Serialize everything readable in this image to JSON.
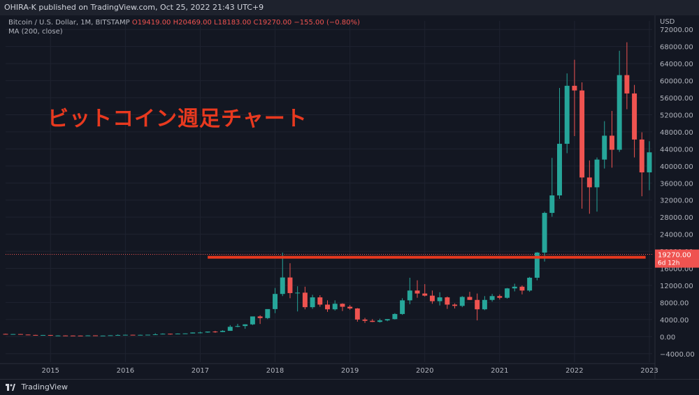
{
  "header": {
    "published": "OHIRA-K published on TradingView.com, Oct 25, 2022 21:43 UTC+9"
  },
  "legend": {
    "symbol": "Bitcoin / U.S. Dollar, 1M, BITSTAMP",
    "open": "O19419.00",
    "high": "H20469.00",
    "low": "L18183.00",
    "close": "C19270.00",
    "change": "−155.00 (−0.80%)",
    "ma": "MA (200, close)"
  },
  "annotation": {
    "title": "ビットコイン週足チャート"
  },
  "price_tag": {
    "price": "19270.00",
    "countdown": "6d 12h"
  },
  "footer": {
    "brand": "TradingView"
  },
  "colors": {
    "up": "#26a69a",
    "down": "#ef5350",
    "support": "#e8391f",
    "bg": "#131722"
  },
  "chart_data": {
    "type": "candlestick",
    "currency": "USD",
    "ylim": [
      -6000,
      74000
    ],
    "yticks": [
      72000,
      68000,
      64000,
      60000,
      56000,
      52000,
      48000,
      44000,
      40000,
      36000,
      32000,
      28000,
      24000,
      20000,
      16000,
      12000,
      8000,
      4000,
      0,
      -4000
    ],
    "ytick_labels": [
      "72000.00",
      "68000.00",
      "64000.00",
      "60000.00",
      "56000.00",
      "52000.00",
      "48000.00",
      "44000.00",
      "40000.00",
      "36000.00",
      "32000.00",
      "28000.00",
      "24000.00",
      "20000.00",
      "16000.00",
      "12000.00",
      "8000.00",
      "4000.00",
      "0.00",
      "−4000.00"
    ],
    "xlim": [
      2014.4,
      2023.0
    ],
    "xticks": [
      2015,
      2016,
      2017,
      2018,
      2019,
      2020,
      2021,
      2022,
      2023
    ],
    "xtick_labels": [
      "2015",
      "2016",
      "2017",
      "2018",
      "2019",
      "2020",
      "2021",
      "2022",
      "2023"
    ],
    "current_price": 19270,
    "support_level": {
      "price": 18600,
      "x_start": 2017.1,
      "x_end": 2022.95
    },
    "candles": [
      {
        "t": 2014.4,
        "o": 630,
        "h": 680,
        "l": 560,
        "c": 580
      },
      {
        "t": 2014.5,
        "o": 580,
        "h": 620,
        "l": 540,
        "c": 600
      },
      {
        "t": 2014.6,
        "o": 600,
        "h": 610,
        "l": 460,
        "c": 480
      },
      {
        "t": 2014.7,
        "o": 480,
        "h": 500,
        "l": 380,
        "c": 390
      },
      {
        "t": 2014.8,
        "o": 390,
        "h": 420,
        "l": 330,
        "c": 340
      },
      {
        "t": 2014.9,
        "o": 340,
        "h": 400,
        "l": 300,
        "c": 380
      },
      {
        "t": 2015.0,
        "o": 380,
        "h": 390,
        "l": 170,
        "c": 220
      },
      {
        "t": 2015.1,
        "o": 220,
        "h": 300,
        "l": 200,
        "c": 260
      },
      {
        "t": 2015.2,
        "o": 260,
        "h": 300,
        "l": 230,
        "c": 245
      },
      {
        "t": 2015.3,
        "o": 245,
        "h": 260,
        "l": 210,
        "c": 235
      },
      {
        "t": 2015.4,
        "o": 235,
        "h": 250,
        "l": 220,
        "c": 230
      },
      {
        "t": 2015.5,
        "o": 230,
        "h": 310,
        "l": 220,
        "c": 285
      },
      {
        "t": 2015.6,
        "o": 285,
        "h": 300,
        "l": 200,
        "c": 230
      },
      {
        "t": 2015.7,
        "o": 230,
        "h": 250,
        "l": 220,
        "c": 237
      },
      {
        "t": 2015.8,
        "o": 237,
        "h": 330,
        "l": 235,
        "c": 315
      },
      {
        "t": 2015.9,
        "o": 315,
        "h": 500,
        "l": 300,
        "c": 380
      },
      {
        "t": 2016.0,
        "o": 380,
        "h": 460,
        "l": 360,
        "c": 430
      },
      {
        "t": 2016.1,
        "o": 430,
        "h": 440,
        "l": 350,
        "c": 370
      },
      {
        "t": 2016.2,
        "o": 370,
        "h": 450,
        "l": 360,
        "c": 415
      },
      {
        "t": 2016.3,
        "o": 415,
        "h": 460,
        "l": 410,
        "c": 450
      },
      {
        "t": 2016.4,
        "o": 450,
        "h": 780,
        "l": 440,
        "c": 530
      },
      {
        "t": 2016.5,
        "o": 530,
        "h": 760,
        "l": 520,
        "c": 670
      },
      {
        "t": 2016.6,
        "o": 670,
        "h": 700,
        "l": 470,
        "c": 620
      },
      {
        "t": 2016.7,
        "o": 620,
        "h": 740,
        "l": 600,
        "c": 700
      },
      {
        "t": 2016.8,
        "o": 700,
        "h": 760,
        "l": 690,
        "c": 745
      },
      {
        "t": 2016.9,
        "o": 745,
        "h": 980,
        "l": 740,
        "c": 965
      },
      {
        "t": 2017.0,
        "o": 965,
        "h": 1150,
        "l": 750,
        "c": 970
      },
      {
        "t": 2017.1,
        "o": 970,
        "h": 1200,
        "l": 900,
        "c": 1180
      },
      {
        "t": 2017.2,
        "o": 1180,
        "h": 1350,
        "l": 890,
        "c": 1080
      },
      {
        "t": 2017.3,
        "o": 1080,
        "h": 1500,
        "l": 1050,
        "c": 1350
      },
      {
        "t": 2017.4,
        "o": 1350,
        "h": 2700,
        "l": 1350,
        "c": 2300
      },
      {
        "t": 2017.5,
        "o": 2300,
        "h": 3000,
        "l": 2200,
        "c": 2480
      },
      {
        "t": 2017.6,
        "o": 2480,
        "h": 2900,
        "l": 1830,
        "c": 2870
      },
      {
        "t": 2017.7,
        "o": 2870,
        "h": 4700,
        "l": 2700,
        "c": 4730
      },
      {
        "t": 2017.8,
        "o": 4730,
        "h": 5000,
        "l": 2970,
        "c": 4340
      },
      {
        "t": 2017.9,
        "o": 4340,
        "h": 6200,
        "l": 4100,
        "c": 6450
      },
      {
        "t": 2018.0,
        "o": 6450,
        "h": 11400,
        "l": 5500,
        "c": 10000
      },
      {
        "t": 2018.1,
        "o": 10000,
        "h": 19700,
        "l": 9500,
        "c": 13860
      },
      {
        "t": 2018.2,
        "o": 13860,
        "h": 17200,
        "l": 9000,
        "c": 10200
      },
      {
        "t": 2018.3,
        "o": 10200,
        "h": 11800,
        "l": 5900,
        "c": 10300
      },
      {
        "t": 2018.4,
        "o": 10300,
        "h": 11700,
        "l": 6400,
        "c": 6900
      },
      {
        "t": 2018.5,
        "o": 6900,
        "h": 9800,
        "l": 6500,
        "c": 9200
      },
      {
        "t": 2018.6,
        "o": 9200,
        "h": 9700,
        "l": 7000,
        "c": 7500
      },
      {
        "t": 2018.7,
        "o": 7500,
        "h": 8500,
        "l": 5800,
        "c": 6400
      },
      {
        "t": 2018.8,
        "o": 6400,
        "h": 8500,
        "l": 6100,
        "c": 7700
      },
      {
        "t": 2018.9,
        "o": 7700,
        "h": 7800,
        "l": 6000,
        "c": 7000
      },
      {
        "t": 2019.0,
        "o": 7000,
        "h": 7400,
        "l": 6300,
        "c": 6600
      },
      {
        "t": 2019.1,
        "o": 6600,
        "h": 6700,
        "l": 3500,
        "c": 4000
      },
      {
        "t": 2019.2,
        "o": 4000,
        "h": 4400,
        "l": 3200,
        "c": 3700
      },
      {
        "t": 2019.3,
        "o": 3700,
        "h": 4100,
        "l": 3400,
        "c": 3450
      },
      {
        "t": 2019.4,
        "o": 3450,
        "h": 4200,
        "l": 3300,
        "c": 3800
      },
      {
        "t": 2019.5,
        "o": 3800,
        "h": 4100,
        "l": 3600,
        "c": 4100
      },
      {
        "t": 2019.6,
        "o": 4100,
        "h": 5500,
        "l": 4000,
        "c": 5300
      },
      {
        "t": 2019.7,
        "o": 5300,
        "h": 9000,
        "l": 5100,
        "c": 8500
      },
      {
        "t": 2019.8,
        "o": 8500,
        "h": 13800,
        "l": 7600,
        "c": 10800
      },
      {
        "t": 2019.9,
        "o": 10800,
        "h": 13200,
        "l": 9100,
        "c": 10100
      },
      {
        "t": 2020.0,
        "o": 10100,
        "h": 12300,
        "l": 9400,
        "c": 9600
      },
      {
        "t": 2020.1,
        "o": 9600,
        "h": 10800,
        "l": 7700,
        "c": 8300
      },
      {
        "t": 2020.2,
        "o": 8300,
        "h": 10400,
        "l": 7300,
        "c": 9200
      },
      {
        "t": 2020.3,
        "o": 9200,
        "h": 9400,
        "l": 6500,
        "c": 7500
      },
      {
        "t": 2020.4,
        "o": 7500,
        "h": 7800,
        "l": 6600,
        "c": 7200
      },
      {
        "t": 2020.5,
        "o": 7200,
        "h": 9500,
        "l": 6900,
        "c": 9300
      },
      {
        "t": 2020.6,
        "o": 9300,
        "h": 10500,
        "l": 8600,
        "c": 8600
      },
      {
        "t": 2020.7,
        "o": 8600,
        "h": 10100,
        "l": 3800,
        "c": 6400
      },
      {
        "t": 2020.8,
        "o": 6400,
        "h": 9500,
        "l": 6200,
        "c": 8600
      },
      {
        "t": 2020.9,
        "o": 8600,
        "h": 10000,
        "l": 8200,
        "c": 9500
      },
      {
        "t": 2021.0,
        "o": 9500,
        "h": 9900,
        "l": 8700,
        "c": 9100
      },
      {
        "t": 2021.1,
        "o": 9100,
        "h": 11400,
        "l": 8900,
        "c": 11300
      },
      {
        "t": 2021.2,
        "o": 11300,
        "h": 12400,
        "l": 10600,
        "c": 11700
      },
      {
        "t": 2021.3,
        "o": 11700,
        "h": 12000,
        "l": 9900,
        "c": 10800
      },
      {
        "t": 2021.4,
        "o": 10800,
        "h": 14000,
        "l": 10500,
        "c": 13800
      },
      {
        "t": 2021.5,
        "o": 13800,
        "h": 19800,
        "l": 13200,
        "c": 19700
      },
      {
        "t": 2021.6,
        "o": 19700,
        "h": 29300,
        "l": 17600,
        "c": 29000
      },
      {
        "t": 2021.7,
        "o": 29000,
        "h": 41900,
        "l": 28100,
        "c": 33100
      },
      {
        "t": 2021.8,
        "o": 33100,
        "h": 58300,
        "l": 32300,
        "c": 45200
      },
      {
        "t": 2021.9,
        "o": 45200,
        "h": 61700,
        "l": 43000,
        "c": 58800
      },
      {
        "t": 2022.0,
        "o": 58800,
        "h": 64900,
        "l": 47000,
        "c": 57700
      },
      {
        "t": 2022.1,
        "o": 57700,
        "h": 59600,
        "l": 30000,
        "c": 37300
      },
      {
        "t": 2022.2,
        "o": 37300,
        "h": 41300,
        "l": 28800,
        "c": 35000
      },
      {
        "t": 2022.3,
        "o": 35000,
        "h": 42000,
        "l": 29300,
        "c": 41500
      },
      {
        "t": 2022.4,
        "o": 41500,
        "h": 50500,
        "l": 39400,
        "c": 47100
      },
      {
        "t": 2022.5,
        "o": 47100,
        "h": 52900,
        "l": 39600,
        "c": 43800
      },
      {
        "t": 2022.6,
        "o": 43800,
        "h": 67000,
        "l": 43300,
        "c": 61300
      },
      {
        "t": 2022.7,
        "o": 61300,
        "h": 69000,
        "l": 53300,
        "c": 57000
      },
      {
        "t": 2022.8,
        "o": 57000,
        "h": 59000,
        "l": 42000,
        "c": 46200
      },
      {
        "t": 2022.9,
        "o": 46200,
        "h": 47900,
        "l": 32900,
        "c": 38500
      },
      {
        "t": 2023.0,
        "o": 38500,
        "h": 45800,
        "l": 34300,
        "c": 43200
      }
    ]
  }
}
